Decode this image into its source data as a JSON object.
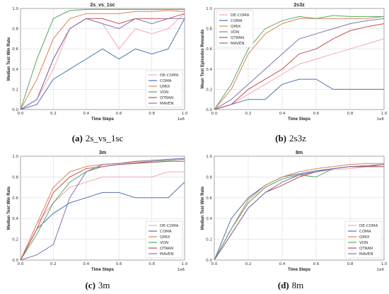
{
  "chart_data": [
    {
      "type": "line",
      "title": "2s_vs_1sc",
      "xlabel": "Time Steps",
      "ylabel": "Median Test Win Rate",
      "x_offset_label": "1e6",
      "xlim": [
        0,
        1.0
      ],
      "ylim": [
        0,
        1.0
      ],
      "xticks": [
        "0.0",
        "0.2",
        "0.4",
        "0.6",
        "0.8",
        "1.0"
      ],
      "yticks": [
        "0.0",
        "0.2",
        "0.4",
        "0.6",
        "0.8",
        "1.0"
      ],
      "grid": true,
      "legend_position": "lower-right",
      "caption_letter": "(a)",
      "caption_text": "2s_vs_1sc",
      "series": [
        {
          "name": "DE-COMA",
          "color": "#f4a6b8",
          "x": [
            0,
            0.1,
            0.2,
            0.3,
            0.4,
            0.5,
            0.6,
            0.7,
            0.8,
            0.9,
            1.0
          ],
          "y": [
            0,
            0.1,
            0.4,
            0.8,
            0.9,
            0.85,
            0.6,
            0.8,
            0.75,
            0.8,
            0.95
          ]
        },
        {
          "name": "COMA",
          "color": "#4c72b0",
          "x": [
            0,
            0.1,
            0.2,
            0.3,
            0.4,
            0.5,
            0.6,
            0.7,
            0.8,
            0.9,
            1.0
          ],
          "y": [
            0,
            0.05,
            0.3,
            0.4,
            0.5,
            0.6,
            0.5,
            0.6,
            0.55,
            0.6,
            0.9
          ]
        },
        {
          "name": "QMIX",
          "color": "#dd8452",
          "x": [
            0,
            0.1,
            0.2,
            0.3,
            0.4,
            0.5,
            0.6,
            0.7,
            0.8,
            0.9,
            1.0
          ],
          "y": [
            0,
            0.3,
            0.7,
            0.9,
            0.95,
            0.95,
            0.95,
            0.97,
            0.97,
            0.98,
            0.97
          ]
        },
        {
          "name": "VDN",
          "color": "#55a868",
          "x": [
            0,
            0.1,
            0.2,
            0.3,
            0.4,
            0.5,
            0.6,
            0.7,
            0.8,
            0.9,
            1.0
          ],
          "y": [
            0,
            0.5,
            0.9,
            0.98,
            0.99,
            0.99,
            0.99,
            0.99,
            0.99,
            0.99,
            0.99
          ]
        },
        {
          "name": "QTRAN",
          "color": "#c44e52",
          "x": [
            0,
            0.1,
            0.2,
            0.3,
            0.4,
            0.5,
            0.6,
            0.7,
            0.8,
            0.9,
            1.0
          ],
          "y": [
            0,
            0.1,
            0.5,
            0.8,
            0.9,
            0.9,
            0.85,
            0.9,
            0.9,
            0.9,
            0.95
          ]
        },
        {
          "name": "MAVEN",
          "color": "#8172b3",
          "x": [
            0,
            0.1,
            0.2,
            0.3,
            0.4,
            0.5,
            0.6,
            0.7,
            0.8,
            0.9,
            1.0
          ],
          "y": [
            0,
            0.1,
            0.5,
            0.8,
            0.9,
            0.85,
            0.8,
            0.9,
            0.85,
            0.9,
            0.9
          ]
        }
      ]
    },
    {
      "type": "line",
      "title": "2s3z",
      "xlabel": "Time Steps",
      "ylabel": "Mean Test Episodes Rewards",
      "x_offset_label": "1e6",
      "xlim": [
        0,
        1.0
      ],
      "ylim": [
        0,
        1.0
      ],
      "xticks": [
        "0.0",
        "0.2",
        "0.4",
        "0.6",
        "0.8",
        "1.0"
      ],
      "yticks": [
        "0.0",
        "0.2",
        "0.4",
        "0.6",
        "0.8",
        "1.0"
      ],
      "grid": true,
      "legend_position": "upper-left",
      "caption_letter": "(b)",
      "caption_text": "2s3z",
      "series": [
        {
          "name": "DE-COMA",
          "color": "#f4a6b8",
          "x": [
            0,
            0.1,
            0.2,
            0.3,
            0.4,
            0.5,
            0.6,
            0.7,
            0.8,
            0.9,
            1.0
          ],
          "y": [
            0,
            0.05,
            0.15,
            0.25,
            0.35,
            0.45,
            0.5,
            0.55,
            0.6,
            0.65,
            0.7
          ]
        },
        {
          "name": "COMA",
          "color": "#4c72b0",
          "x": [
            0,
            0.1,
            0.2,
            0.3,
            0.4,
            0.5,
            0.6,
            0.7,
            0.8,
            0.9,
            1.0
          ],
          "y": [
            0,
            0.05,
            0.1,
            0.1,
            0.25,
            0.3,
            0.3,
            0.2,
            0.2,
            0.2,
            0.2
          ]
        },
        {
          "name": "QMIX",
          "color": "#dd8452",
          "x": [
            0,
            0.1,
            0.2,
            0.3,
            0.4,
            0.5,
            0.6,
            0.7,
            0.8,
            0.9,
            1.0
          ],
          "y": [
            0,
            0.2,
            0.55,
            0.75,
            0.85,
            0.9,
            0.9,
            0.9,
            0.9,
            0.9,
            0.92
          ]
        },
        {
          "name": "VDN",
          "color": "#55a868",
          "x": [
            0,
            0.1,
            0.2,
            0.3,
            0.4,
            0.5,
            0.6,
            0.7,
            0.8,
            0.9,
            1.0
          ],
          "y": [
            0,
            0.25,
            0.6,
            0.8,
            0.88,
            0.92,
            0.9,
            0.93,
            0.92,
            0.92,
            0.92
          ]
        },
        {
          "name": "QTRAN",
          "color": "#c44e52",
          "x": [
            0,
            0.1,
            0.2,
            0.3,
            0.4,
            0.5,
            0.6,
            0.7,
            0.8,
            0.9,
            1.0
          ],
          "y": [
            0,
            0.05,
            0.2,
            0.3,
            0.4,
            0.55,
            0.6,
            0.7,
            0.78,
            0.82,
            0.85
          ]
        },
        {
          "name": "MAVEN",
          "color": "#8172b3",
          "x": [
            0,
            0.1,
            0.2,
            0.3,
            0.4,
            0.5,
            0.6,
            0.7,
            0.8,
            0.9,
            1.0
          ],
          "y": [
            0,
            0.1,
            0.25,
            0.4,
            0.55,
            0.7,
            0.75,
            0.8,
            0.85,
            0.88,
            0.9
          ]
        }
      ]
    },
    {
      "type": "line",
      "title": "3m",
      "xlabel": "Time Steps",
      "ylabel": "Median Test Win Rate",
      "x_offset_label": "1e6",
      "xlim": [
        0,
        1.0
      ],
      "ylim": [
        0,
        1.0
      ],
      "xticks": [
        "0.0",
        "0.2",
        "0.4",
        "0.6",
        "0.8",
        "1.0"
      ],
      "yticks": [
        "0.0",
        "0.2",
        "0.4",
        "0.6",
        "0.8",
        "1.0"
      ],
      "grid": true,
      "legend_position": "lower-right",
      "caption_letter": "(c)",
      "caption_text": "3m",
      "series": [
        {
          "name": "DE-COMA",
          "color": "#f4a6b8",
          "x": [
            0,
            0.1,
            0.2,
            0.3,
            0.4,
            0.5,
            0.6,
            0.7,
            0.8,
            0.9,
            1.0
          ],
          "y": [
            0,
            0.35,
            0.55,
            0.7,
            0.75,
            0.8,
            0.8,
            0.8,
            0.8,
            0.85,
            0.85
          ]
        },
        {
          "name": "COMA",
          "color": "#4c72b0",
          "x": [
            0,
            0.1,
            0.2,
            0.3,
            0.4,
            0.5,
            0.6,
            0.7,
            0.8,
            0.9,
            1.0
          ],
          "y": [
            0,
            0.3,
            0.45,
            0.55,
            0.6,
            0.65,
            0.65,
            0.6,
            0.6,
            0.6,
            0.75
          ]
        },
        {
          "name": "QMIX",
          "color": "#dd8452",
          "x": [
            0,
            0.1,
            0.2,
            0.3,
            0.4,
            0.5,
            0.6,
            0.7,
            0.8,
            0.9,
            1.0
          ],
          "y": [
            0,
            0.35,
            0.7,
            0.85,
            0.9,
            0.92,
            0.93,
            0.94,
            0.95,
            0.96,
            0.97
          ]
        },
        {
          "name": "VDN",
          "color": "#55a868",
          "x": [
            0,
            0.1,
            0.2,
            0.3,
            0.4,
            0.5,
            0.6,
            0.7,
            0.8,
            0.9,
            1.0
          ],
          "y": [
            0,
            0.25,
            0.55,
            0.75,
            0.85,
            0.9,
            0.92,
            0.93,
            0.95,
            0.96,
            0.97
          ]
        },
        {
          "name": "QTRAN",
          "color": "#c44e52",
          "x": [
            0,
            0.1,
            0.2,
            0.3,
            0.4,
            0.5,
            0.6,
            0.7,
            0.8,
            0.9,
            1.0
          ],
          "y": [
            0,
            0.3,
            0.65,
            0.8,
            0.88,
            0.9,
            0.92,
            0.93,
            0.94,
            0.95,
            0.95
          ]
        },
        {
          "name": "MAVEN",
          "color": "#8172b3",
          "x": [
            0,
            0.1,
            0.2,
            0.3,
            0.4,
            0.5,
            0.6,
            0.7,
            0.8,
            0.9,
            1.0
          ],
          "y": [
            0,
            0.05,
            0.15,
            0.6,
            0.85,
            0.92,
            0.93,
            0.95,
            0.96,
            0.97,
            0.98
          ]
        }
      ]
    },
    {
      "type": "line",
      "title": "8m",
      "xlabel": "Time Steps",
      "ylabel": "Median Test Win Rate",
      "x_offset_label": "1e6",
      "xlim": [
        0,
        1.0
      ],
      "ylim": [
        0,
        1.0
      ],
      "xticks": [
        "0.0",
        "0.2",
        "0.4",
        "0.6",
        "0.8",
        "1.0"
      ],
      "yticks": [
        "0.0",
        "0.2",
        "0.4",
        "0.6",
        "0.8",
        "1.0"
      ],
      "grid": true,
      "legend_position": "lower-right",
      "caption_letter": "(d)",
      "caption_text": "8m",
      "series": [
        {
          "name": "DE-COMA",
          "color": "#f4a6b8",
          "x": [
            0,
            0.1,
            0.2,
            0.3,
            0.4,
            0.5,
            0.6,
            0.7,
            0.8,
            0.9,
            1.0
          ],
          "y": [
            0,
            0.3,
            0.55,
            0.7,
            0.78,
            0.82,
            0.85,
            0.87,
            0.88,
            0.9,
            0.9
          ]
        },
        {
          "name": "COMA",
          "color": "#4c72b0",
          "x": [
            0,
            0.1,
            0.2,
            0.3,
            0.4,
            0.5,
            0.6,
            0.7,
            0.8,
            0.9,
            1.0
          ],
          "y": [
            0,
            0.4,
            0.6,
            0.72,
            0.8,
            0.83,
            0.86,
            0.88,
            0.9,
            0.9,
            0.92
          ]
        },
        {
          "name": "QMIX",
          "color": "#dd8452",
          "x": [
            0,
            0.1,
            0.2,
            0.3,
            0.4,
            0.5,
            0.6,
            0.7,
            0.8,
            0.9,
            1.0
          ],
          "y": [
            0,
            0.3,
            0.58,
            0.72,
            0.8,
            0.85,
            0.88,
            0.9,
            0.92,
            0.93,
            0.93
          ]
        },
        {
          "name": "VDN",
          "color": "#55a868",
          "x": [
            0,
            0.1,
            0.2,
            0.3,
            0.4,
            0.5,
            0.6,
            0.7,
            0.8,
            0.9,
            1.0
          ],
          "y": [
            0,
            0.3,
            0.55,
            0.7,
            0.78,
            0.82,
            0.8,
            0.88,
            0.9,
            0.9,
            0.92
          ]
        },
        {
          "name": "QTRAN",
          "color": "#c44e52",
          "x": [
            0,
            0.1,
            0.2,
            0.3,
            0.4,
            0.5,
            0.6,
            0.7,
            0.8,
            0.9,
            1.0
          ],
          "y": [
            0,
            0.25,
            0.5,
            0.65,
            0.72,
            0.8,
            0.85,
            0.88,
            0.9,
            0.9,
            0.9
          ]
        },
        {
          "name": "MAVEN",
          "color": "#8172b3",
          "x": [
            0,
            0.1,
            0.2,
            0.3,
            0.4,
            0.5,
            0.6,
            0.7,
            0.8,
            0.9,
            1.0
          ],
          "y": [
            0,
            0.25,
            0.5,
            0.65,
            0.75,
            0.82,
            0.85,
            0.88,
            0.9,
            0.91,
            0.92
          ]
        }
      ]
    }
  ]
}
